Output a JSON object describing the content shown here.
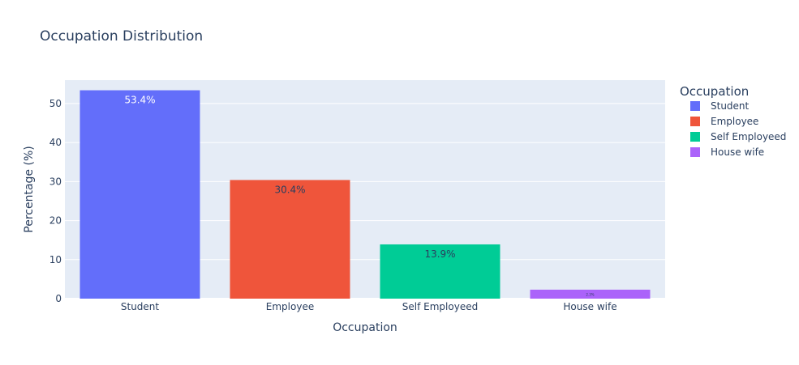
{
  "chart_data": {
    "type": "bar",
    "title": "Occupation Distribution",
    "xlabel": "Occupation",
    "ylabel": "Percentage (%)",
    "categories": [
      "Student",
      "Employee",
      "Self Employeed",
      "House wife"
    ],
    "values": [
      53.4,
      30.4,
      13.9,
      2.3
    ],
    "data_labels": [
      "53.4%",
      "30.4%",
      "13.9%",
      "2.3%"
    ],
    "colors": [
      "#636efa",
      "#ef553b",
      "#00cc96",
      "#ab63fa"
    ],
    "label_colors": [
      "#ffffff",
      "#2a3f5f",
      "#2a3f5f",
      "#2a3f5f"
    ],
    "ylim": [
      0,
      56
    ],
    "yticks": [
      0,
      10,
      20,
      30,
      40,
      50
    ],
    "grid": true,
    "plot_background": "#e5ecf6",
    "legend": {
      "title": "Occupation",
      "position": "right",
      "items": [
        "Student",
        "Employee",
        "Self Employeed",
        "House wife"
      ]
    }
  }
}
